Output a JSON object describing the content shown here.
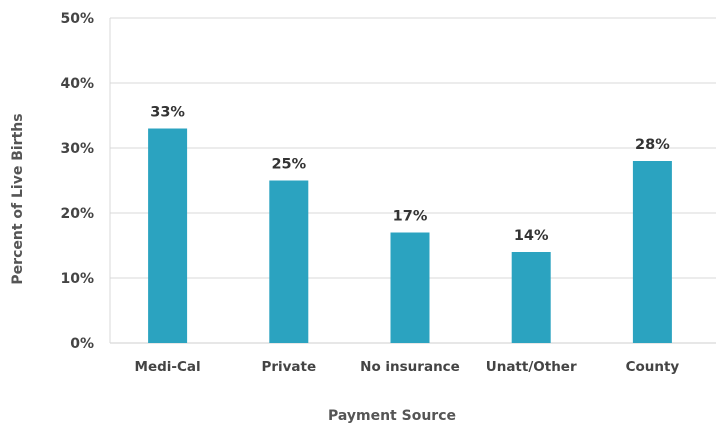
{
  "chart_data": {
    "type": "bar",
    "categories": [
      "Medi-Cal",
      "Private",
      "No insurance",
      "Unatt/Other",
      "County"
    ],
    "values": [
      33,
      25,
      17,
      14,
      28
    ],
    "value_labels": [
      "33%",
      "25%",
      "17%",
      "14%",
      "28%"
    ],
    "y_ticks": [
      0,
      10,
      20,
      30,
      40,
      50
    ],
    "y_tick_labels": [
      "0%",
      "10%",
      "20%",
      "30%",
      "40%",
      "50%"
    ],
    "ylim": [
      0,
      50
    ],
    "xlabel": "Payment Source",
    "ylabel": "Percent of Live Births",
    "grid": true,
    "bar_color": "#2ba3c0"
  }
}
